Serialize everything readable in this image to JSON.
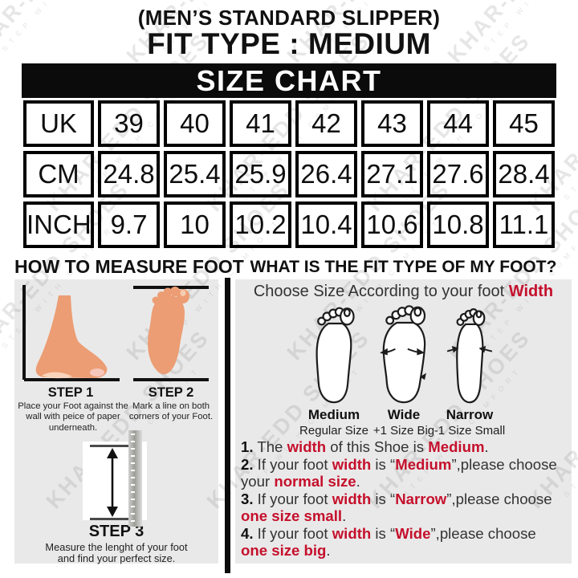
{
  "header": {
    "subtitle": "(MEN’S STANDARD SLIPPER)",
    "title": "FIT TYPE : MEDIUM"
  },
  "size_chart": {
    "banner": "SIZE CHART",
    "table": {
      "rows": [
        {
          "label": "UK",
          "values": [
            "39",
            "40",
            "41",
            "42",
            "43",
            "44",
            "45"
          ]
        },
        {
          "label": "CM",
          "values": [
            "24.8",
            "25.4",
            "25.9",
            "26.4",
            "27.1",
            "27.6",
            "28.4"
          ]
        },
        {
          "label": "INCH",
          "values": [
            "9.7",
            "10",
            "10.2",
            "10.4",
            "10.6",
            "10.8",
            "11.1"
          ]
        }
      ]
    }
  },
  "measure_section": {
    "heading": "HOW TO MEASURE FOOT",
    "steps": [
      {
        "label": "STEP 1",
        "caption": "Place your Foot against the wall with peice of paper underneath."
      },
      {
        "label": "STEP 2",
        "caption": "Mark a line on both corners of your Foot."
      },
      {
        "label": "STEP 3",
        "caption": "Measure the lenght of your foot and find your perfect size."
      }
    ]
  },
  "fit_section": {
    "heading": "WHAT IS THE FIT TYPE OF MY FOOT?",
    "subheading_segments": [
      {
        "t": "Choose Size According to your foot ",
        "c": "plain"
      },
      {
        "t": "Width",
        "c": "red"
      }
    ],
    "foot_types": [
      {
        "name": "Medium",
        "desc": "Regular Size"
      },
      {
        "name": "Wide",
        "desc": "+1 Size Big"
      },
      {
        "name": "Narrow",
        "desc": "-1 Size Small"
      }
    ],
    "instructions": [
      {
        "segments": [
          {
            "t": "1.",
            "c": "num"
          },
          {
            "t": " The ",
            "c": "plain"
          },
          {
            "t": "width",
            "c": "red"
          },
          {
            "t": " of this Shoe is ",
            "c": "plain"
          },
          {
            "t": "Medium",
            "c": "red"
          },
          {
            "t": ".",
            "c": "plain"
          }
        ]
      },
      {
        "segments": [
          {
            "t": "2.",
            "c": "num"
          },
          {
            "t": " If your foot ",
            "c": "plain"
          },
          {
            "t": "width",
            "c": "red"
          },
          {
            "t": " is “",
            "c": "plain"
          },
          {
            "t": "Medium",
            "c": "red"
          },
          {
            "t": "”,please choose",
            "c": "plain"
          },
          {
            "t": "",
            "c": "br"
          },
          {
            "t": "your ",
            "c": "plain"
          },
          {
            "t": "normal size",
            "c": "red"
          },
          {
            "t": ".",
            "c": "plain"
          }
        ]
      },
      {
        "segments": [
          {
            "t": "3.",
            "c": "num"
          },
          {
            "t": " If your foot ",
            "c": "plain"
          },
          {
            "t": "width",
            "c": "red"
          },
          {
            "t": " is “",
            "c": "plain"
          },
          {
            "t": "Narrow",
            "c": "red"
          },
          {
            "t": "”,please choose",
            "c": "plain"
          },
          {
            "t": "",
            "c": "br"
          },
          {
            "t": "one size small",
            "c": "red"
          },
          {
            "t": ".",
            "c": "plain"
          }
        ]
      },
      {
        "segments": [
          {
            "t": "4.",
            "c": "num"
          },
          {
            "t": " If your foot ",
            "c": "plain"
          },
          {
            "t": "width",
            "c": "red"
          },
          {
            "t": " is “",
            "c": "plain"
          },
          {
            "t": "Wide",
            "c": "red"
          },
          {
            "t": "”,please choose",
            "c": "plain"
          },
          {
            "t": "",
            "c": "br"
          },
          {
            "t": "one size big",
            "c": "red"
          },
          {
            "t": ".",
            "c": "plain"
          }
        ]
      }
    ]
  },
  "watermark": {
    "brand": "KHAR-EDD SHOES",
    "tagline": "STEP WITH COMFORT"
  },
  "colors": {
    "accent_red": "#c5102c",
    "panel_gray": "#e9e9e9",
    "skin": "#ec9d73",
    "banner_black": "#0b0b0b"
  }
}
